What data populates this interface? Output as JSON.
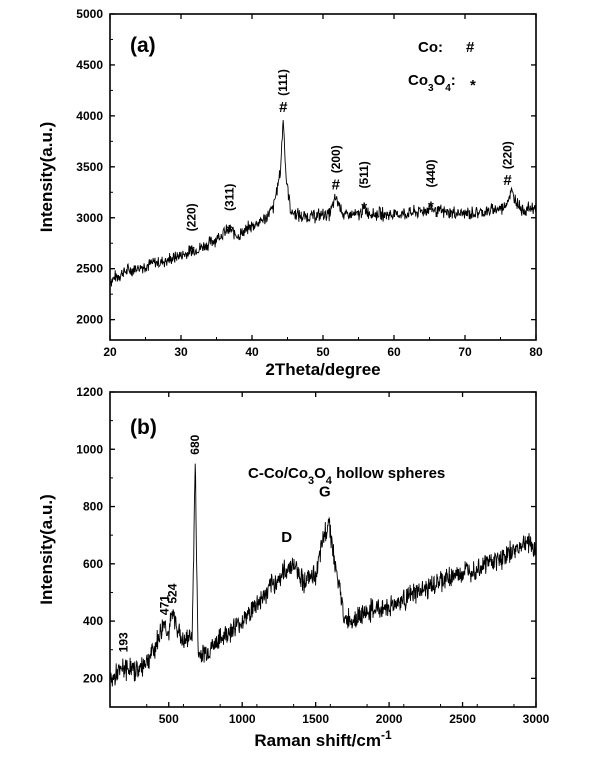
{
  "chart_data": [
    {
      "type": "line",
      "panel_label": "(a)",
      "xlabel": "2Theta/degree",
      "ylabel": "Intensity(a.u.)",
      "xlim": [
        20,
        80
      ],
      "ylim": [
        1800,
        5000
      ],
      "xticks": [
        20,
        30,
        40,
        50,
        60,
        70,
        80
      ],
      "yticks": [
        2000,
        2500,
        3000,
        3500,
        4000,
        4500,
        5000
      ],
      "legend": [
        {
          "label": "Co:",
          "symbol": "#"
        },
        {
          "label_base": "Co",
          "sub1": "3",
          "mid": "O",
          "sub2": "4",
          "suffix": ":",
          "symbol": "*"
        }
      ],
      "series": [
        {
          "x": [
            20,
            22,
            24,
            26,
            28,
            30,
            32,
            34,
            36,
            37,
            38,
            40,
            42,
            43,
            44,
            44.4,
            44.8,
            45.5,
            47,
            49,
            51,
            51.8,
            53,
            55,
            55.8,
            57,
            60,
            63,
            65,
            67,
            70,
            73,
            75.5,
            76.5,
            78,
            80
          ],
          "y": [
            2380,
            2470,
            2510,
            2550,
            2580,
            2630,
            2680,
            2750,
            2850,
            2880,
            2820,
            2920,
            3000,
            3100,
            3450,
            3980,
            3400,
            3060,
            3010,
            3020,
            3040,
            3200,
            3020,
            3030,
            3080,
            3040,
            3030,
            3050,
            3090,
            3050,
            3040,
            3060,
            3100,
            3250,
            3080,
            3100
          ]
        }
      ],
      "annotations": [
        {
          "text": "(220)",
          "marker": "*",
          "x": 31.5,
          "y": 2690
        },
        {
          "text": "(311)",
          "marker": "*",
          "x": 36.8,
          "y": 2890
        },
        {
          "text": "(111)",
          "marker": "#",
          "x": 44.4,
          "y": 4000
        },
        {
          "text": "(200)",
          "marker": "#",
          "x": 51.8,
          "y": 3240
        },
        {
          "text": "(511)",
          "marker": "*",
          "x": 55.8,
          "y": 3110
        },
        {
          "text": "(440)",
          "marker": "*",
          "x": 65.2,
          "y": 3120
        },
        {
          "text": "(220)",
          "marker": "#",
          "x": 76.0,
          "y": 3280
        }
      ]
    },
    {
      "type": "line",
      "panel_label": "(b)",
      "xlabel_base": "Raman shift/cm",
      "xlabel_sup": "-1",
      "ylabel": "Intensity(a.u.)",
      "xlim": [
        100,
        3000
      ],
      "ylim": [
        100,
        1200
      ],
      "xticks": [
        500,
        1000,
        1500,
        2000,
        2500,
        3000
      ],
      "yticks": [
        200,
        400,
        600,
        800,
        1000,
        1200
      ],
      "title_parts": {
        "base": "C-Co/Co",
        "sub1": "3",
        "mid": "O",
        "sub2": "4",
        "suffix": " hollow spheres"
      },
      "series": [
        {
          "x": [
            100,
            193,
            300,
            400,
            471,
            500,
            524,
            600,
            660,
            680,
            700,
            800,
            900,
            1000,
            1100,
            1200,
            1300,
            1350,
            1420,
            1500,
            1560,
            1590,
            1630,
            1700,
            1800,
            1900,
            2000,
            2200,
            2400,
            2600,
            2800,
            2950,
            3000
          ],
          "y": [
            190,
            235,
            230,
            300,
            400,
            350,
            430,
            320,
            360,
            950,
            280,
            310,
            360,
            400,
            460,
            520,
            580,
            600,
            540,
            560,
            700,
            760,
            600,
            400,
            420,
            440,
            450,
            500,
            550,
            590,
            630,
            680,
            640
          ]
        }
      ],
      "annotations": [
        {
          "text": "193",
          "x": 193,
          "y": 270
        },
        {
          "text": "471",
          "x": 471,
          "y": 400
        },
        {
          "text": "524",
          "x": 524,
          "y": 440
        },
        {
          "text": "680",
          "x": 680,
          "y": 960
        },
        {
          "text": "D",
          "x": 1330,
          "y": 620
        },
        {
          "text": "G",
          "x": 1590,
          "y": 780
        }
      ]
    }
  ]
}
